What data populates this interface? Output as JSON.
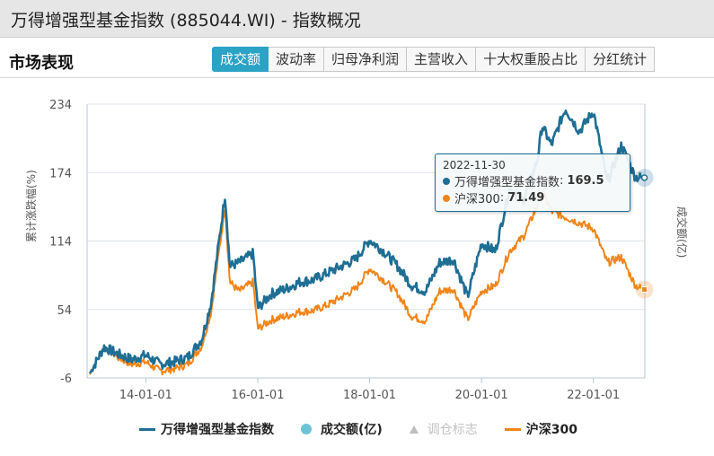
{
  "window": {
    "title": "万得增强型基金指数 (885044.WI) - 指数概况"
  },
  "section": {
    "title": "市场表现"
  },
  "tabs": [
    {
      "label": "成交额",
      "active": true
    },
    {
      "label": "波动率",
      "active": false
    },
    {
      "label": "归母净利润",
      "active": false
    },
    {
      "label": "主营收入",
      "active": false
    },
    {
      "label": "十大权重股占比",
      "active": false
    },
    {
      "label": "分红统计",
      "active": false
    }
  ],
  "tooltip": {
    "date": "2022-11-30",
    "rows": [
      {
        "name": "万得增强型基金指数",
        "sep": ":",
        "value": "169.5",
        "color": "#1f6e94"
      },
      {
        "name": "沪深300",
        "sep": ":",
        "value": "71.49",
        "color": "#f08519"
      }
    ]
  },
  "legend": [
    {
      "label": "万得增强型基金指数",
      "type": "line",
      "color": "#1f6e94"
    },
    {
      "label": "成交额(亿)",
      "type": "circle",
      "color": "#6cc3d5"
    },
    {
      "label": "调仓标志",
      "type": "triangle",
      "color": "#bdbdbd"
    },
    {
      "label": "沪深300",
      "type": "line",
      "color": "#f08519"
    }
  ],
  "colors": {
    "accent": "#2aa3c4",
    "series1": "#1f6e94",
    "series2": "#f08519",
    "grid": "#dde3ea"
  },
  "chart_data": {
    "type": "line",
    "title": "",
    "xlabel": "",
    "ylabel": "累计涨跌幅(%)",
    "ylabel_right": "成交额(亿)",
    "ylim": [
      -6,
      234
    ],
    "yticks": [
      -6,
      54,
      114,
      174,
      234
    ],
    "xticks": [
      "14-01-01",
      "16-01-01",
      "18-01-01",
      "20-01-01",
      "22-01-01"
    ],
    "grid": true,
    "legend_position": "bottom",
    "x": [
      "2013-01",
      "2013-04",
      "2013-07",
      "2013-10",
      "2014-01",
      "2014-04",
      "2014-07",
      "2014-10",
      "2015-01",
      "2015-03",
      "2015-06",
      "2015-07",
      "2015-09",
      "2015-12",
      "2016-01",
      "2016-04",
      "2016-07",
      "2016-10",
      "2017-01",
      "2017-04",
      "2017-07",
      "2017-10",
      "2018-01",
      "2018-04",
      "2018-07",
      "2018-10",
      "2019-01",
      "2019-04",
      "2019-07",
      "2019-10",
      "2020-01",
      "2020-04",
      "2020-07",
      "2020-10",
      "2021-01",
      "2021-02",
      "2021-04",
      "2021-07",
      "2021-10",
      "2022-01",
      "2022-04",
      "2022-07",
      "2022-10",
      "2022-11-30"
    ],
    "series": [
      {
        "name": "万得增强型基金指数",
        "values": [
          -2,
          21,
          15,
          10,
          14,
          6,
          8,
          12,
          28,
          60,
          155,
          92,
          95,
          103,
          55,
          68,
          72,
          78,
          80,
          86,
          92,
          98,
          115,
          105,
          92,
          75,
          70,
          95,
          98,
          65,
          112,
          105,
          160,
          150,
          185,
          215,
          198,
          230,
          210,
          228,
          165,
          198,
          170,
          169.5
        ]
      },
      {
        "name": "沪深300",
        "values": [
          -3,
          22,
          12,
          6,
          8,
          0,
          2,
          6,
          22,
          52,
          145,
          78,
          70,
          78,
          37,
          45,
          48,
          52,
          53,
          58,
          65,
          72,
          90,
          80,
          68,
          48,
          44,
          70,
          72,
          45,
          70,
          75,
          105,
          118,
          145,
          158,
          140,
          135,
          130,
          125,
          95,
          100,
          75,
          71.49
        ]
      }
    ],
    "tooltip_date": "2022-11-30",
    "tooltip_values": {
      "万得增强型基金指数": 169.5,
      "沪深300": 71.49
    }
  }
}
